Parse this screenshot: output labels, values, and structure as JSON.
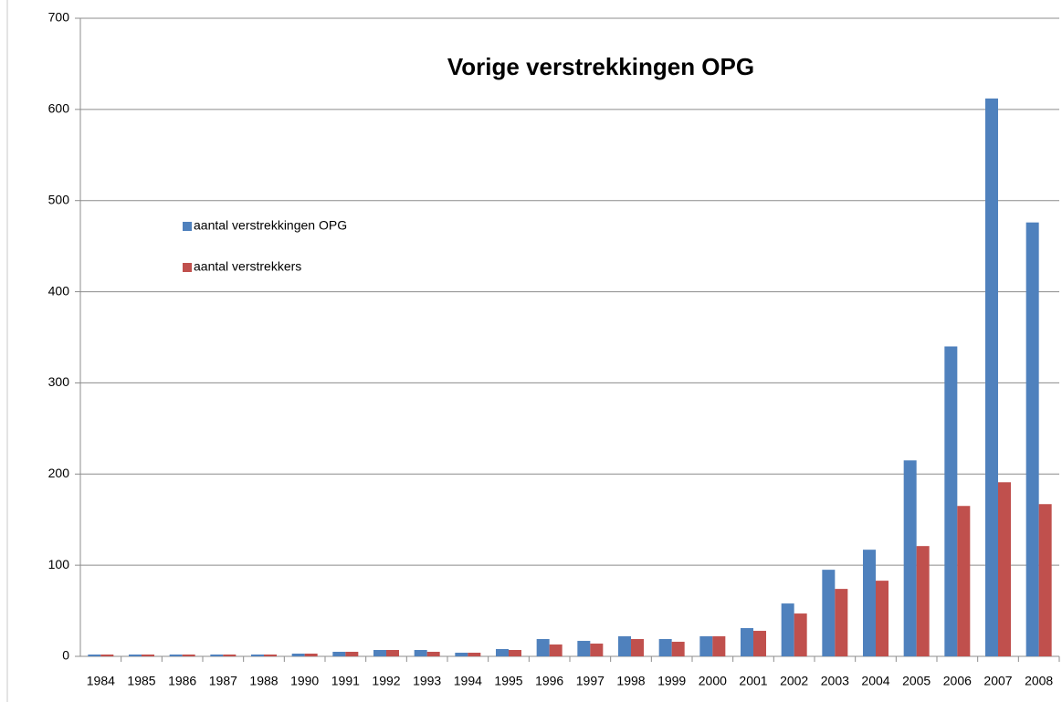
{
  "chart_data": {
    "type": "bar",
    "title": "Vorige verstrekkingen  OPG",
    "categories": [
      "1984",
      "1985",
      "1986",
      "1987",
      "1988",
      "1990",
      "1991",
      "1992",
      "1993",
      "1994",
      "1995",
      "1996",
      "1997",
      "1998",
      "1999",
      "2000",
      "2001",
      "2002",
      "2003",
      "2004",
      "2005",
      "2006",
      "2007",
      "2008"
    ],
    "series": [
      {
        "name": "aantal verstrekkingen OPG",
        "color": "#4f81bd",
        "values": [
          2,
          2,
          2,
          2,
          2,
          3,
          5,
          7,
          7,
          4,
          8,
          19,
          17,
          22,
          19,
          22,
          31,
          58,
          95,
          117,
          215,
          340,
          612,
          476
        ]
      },
      {
        "name": "aantal verstrekkers",
        "color": "#c0504d",
        "values": [
          2,
          2,
          2,
          2,
          2,
          3,
          5,
          7,
          5,
          4,
          7,
          13,
          14,
          19,
          16,
          22,
          28,
          47,
          74,
          83,
          121,
          165,
          191,
          167
        ]
      }
    ],
    "ylim": [
      0,
      700
    ],
    "yticks": [
      0,
      100,
      200,
      300,
      400,
      500,
      600,
      700
    ],
    "grid": true,
    "legend": "left"
  }
}
